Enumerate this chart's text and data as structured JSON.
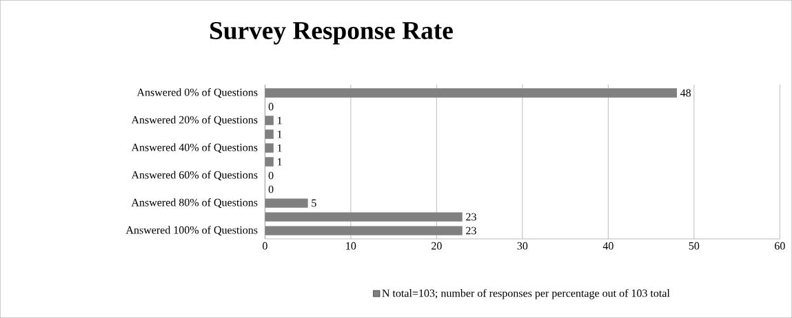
{
  "chart_data": {
    "type": "bar",
    "orientation": "horizontal",
    "title": "Survey Response Rate",
    "categories": [
      "Answered 0% of Questions",
      null,
      "Answered 20% of Questions",
      null,
      "Answered 40% of Questions",
      null,
      "Answered 60% of Questions",
      null,
      "Answered 80% of Questions",
      null,
      "Answered 100% of Questions"
    ],
    "series": [
      {
        "name": "N total=103; number of responses per percentage out of 103 total",
        "color": "#808080",
        "values": [
          48,
          0,
          1,
          1,
          1,
          1,
          0,
          0,
          5,
          23,
          23
        ]
      }
    ],
    "xlim": [
      0,
      60
    ],
    "xticks": [
      0,
      10,
      20,
      30,
      40,
      50,
      60
    ],
    "grid": "x",
    "legend": "bottom",
    "data_labels": true
  }
}
